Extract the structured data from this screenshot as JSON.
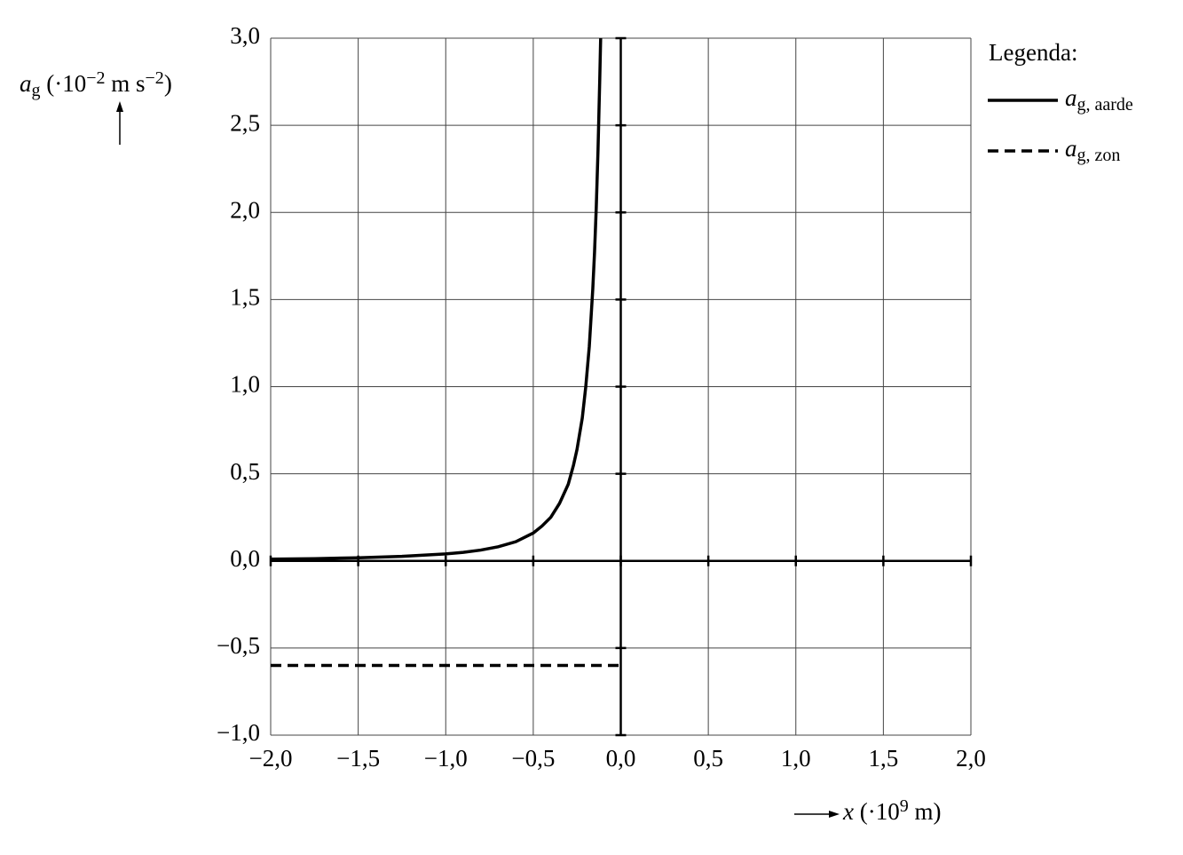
{
  "chart_data": {
    "type": "line",
    "ylabel": [
      "a",
      "g",
      " (·10",
      "−2",
      " m s",
      "−2",
      ")"
    ],
    "xlabel": [
      "x",
      " (·10",
      "9",
      " m)"
    ],
    "legend_title": "Legenda:",
    "xlim": [
      -2.0,
      2.0
    ],
    "ylim": [
      -1.0,
      3.0
    ],
    "xticks": [
      {
        "value": -2.0,
        "label": "−2,0"
      },
      {
        "value": -1.5,
        "label": "−1,5"
      },
      {
        "value": -1.0,
        "label": "−1,0"
      },
      {
        "value": -0.5,
        "label": "−0,5"
      },
      {
        "value": 0.0,
        "label": "0,0"
      },
      {
        "value": 0.5,
        "label": "0,5"
      },
      {
        "value": 1.0,
        "label": "1,0"
      },
      {
        "value": 1.5,
        "label": "1,5"
      },
      {
        "value": 2.0,
        "label": "2,0"
      }
    ],
    "yticks": [
      {
        "value": -1.0,
        "label": "−1,0"
      },
      {
        "value": -0.5,
        "label": "−0,5"
      },
      {
        "value": 0.0,
        "label": "0,0"
      },
      {
        "value": 0.5,
        "label": "0,5"
      },
      {
        "value": 1.0,
        "label": "1,0"
      },
      {
        "value": 1.5,
        "label": "1,5"
      },
      {
        "value": 2.0,
        "label": "2,0"
      },
      {
        "value": 2.5,
        "label": "2,5"
      },
      {
        "value": 3.0,
        "label": "3,0"
      }
    ],
    "grid": true,
    "series": [
      {
        "name": [
          "a",
          "g, aarde"
        ],
        "color": "#000000",
        "dashed": false,
        "x": [
          -2.0,
          -1.75,
          -1.5,
          -1.25,
          -1.0,
          -0.9,
          -0.8,
          -0.7,
          -0.6,
          -0.5,
          -0.45,
          -0.4,
          -0.35,
          -0.3,
          -0.27,
          -0.25,
          -0.22,
          -0.2,
          -0.18,
          -0.16,
          -0.15,
          -0.14,
          -0.13,
          -0.12,
          -0.115
        ],
        "values": [
          0.01,
          0.013,
          0.018,
          0.026,
          0.04,
          0.049,
          0.062,
          0.081,
          0.11,
          0.16,
          0.2,
          0.25,
          0.33,
          0.44,
          0.55,
          0.64,
          0.82,
          1.0,
          1.23,
          1.56,
          1.77,
          2.03,
          2.36,
          2.77,
          3.0
        ]
      },
      {
        "name": [
          "a",
          "g, zon"
        ],
        "color": "#000000",
        "dashed": true,
        "x": [
          -2.0,
          0.0
        ],
        "values": [
          -0.6,
          -0.6
        ]
      }
    ]
  }
}
